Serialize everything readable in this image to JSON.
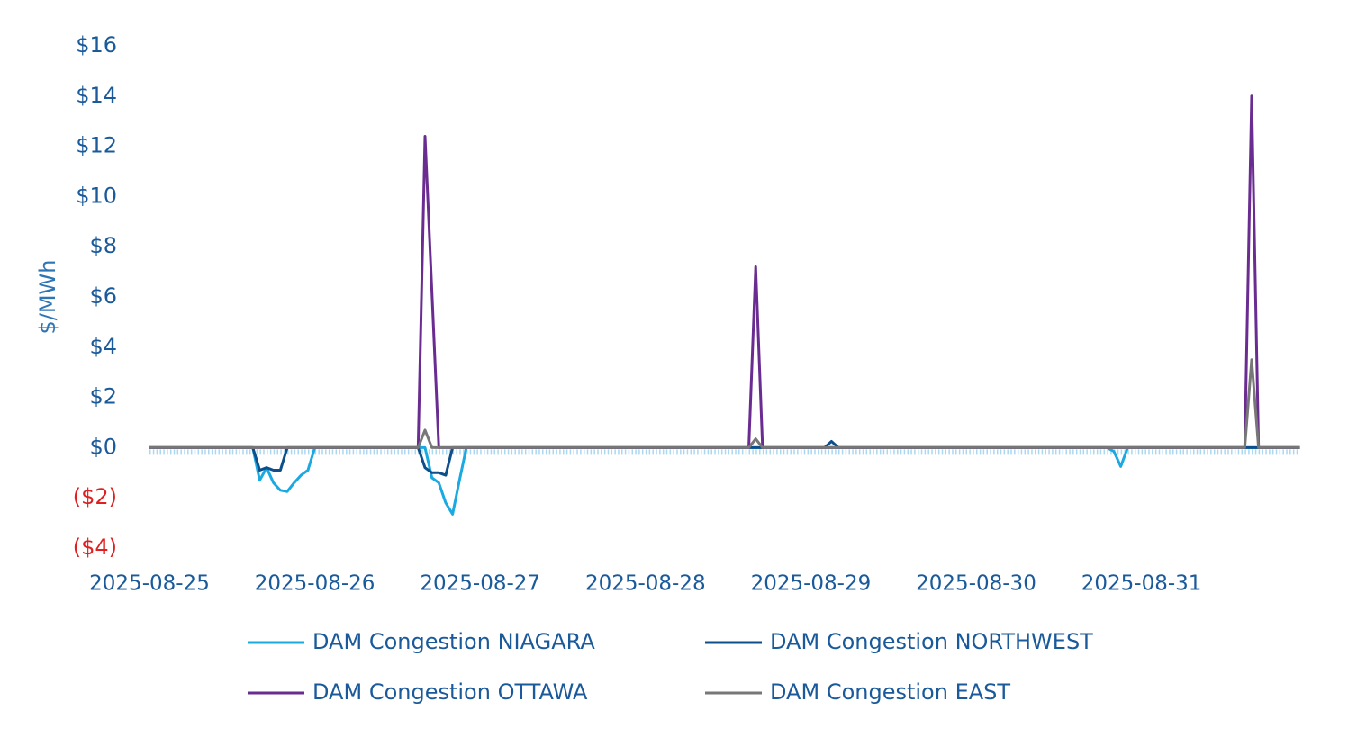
{
  "chart_data": {
    "type": "line",
    "y_label": "$/MWh",
    "categories": [
      "2025-08-25",
      null,
      null,
      null,
      null,
      null,
      null,
      null,
      null,
      null,
      null,
      null,
      null,
      null,
      null,
      null,
      null,
      null,
      null,
      null,
      null,
      null,
      null,
      null,
      "2025-08-26",
      null,
      null,
      null,
      null,
      null,
      null,
      null,
      null,
      null,
      null,
      null,
      null,
      null,
      null,
      null,
      null,
      null,
      null,
      null,
      null,
      null,
      null,
      null,
      "2025-08-27",
      null,
      null,
      null,
      null,
      null,
      null,
      null,
      null,
      null,
      null,
      null,
      null,
      null,
      null,
      null,
      null,
      null,
      null,
      null,
      null,
      null,
      null,
      null,
      "2025-08-28",
      null,
      null,
      null,
      null,
      null,
      null,
      null,
      null,
      null,
      null,
      null,
      null,
      null,
      null,
      null,
      null,
      null,
      null,
      null,
      null,
      null,
      null,
      null,
      "2025-08-29",
      null,
      null,
      null,
      null,
      null,
      null,
      null,
      null,
      null,
      null,
      null,
      null,
      null,
      null,
      null,
      null,
      null,
      null,
      null,
      null,
      null,
      null,
      null,
      "2025-08-30",
      null,
      null,
      null,
      null,
      null,
      null,
      null,
      null,
      null,
      null,
      null,
      null,
      null,
      null,
      null,
      null,
      null,
      null,
      null,
      null,
      null,
      null,
      null,
      "2025-08-31",
      null,
      null,
      null,
      null,
      null,
      null,
      null,
      null,
      null,
      null,
      null,
      null,
      null,
      null,
      null,
      null,
      null,
      null,
      null,
      null,
      null,
      null,
      null
    ],
    "series": [
      {
        "name": "DAM Congestion NIAGARA",
        "color": "#1ba9e1",
        "values": [
          0,
          0,
          0,
          0,
          0,
          0,
          0,
          0,
          0,
          0,
          0,
          0,
          0,
          0,
          0,
          0,
          -1.3,
          -0.8,
          -1.4,
          -1.7,
          -1.75,
          -1.4,
          -1.1,
          -0.9,
          0,
          0,
          0,
          0,
          0,
          0,
          0,
          0,
          0,
          0,
          0,
          0,
          0,
          0,
          0,
          0,
          0,
          -1.2,
          -1.4,
          -2.2,
          -2.65,
          -1.3,
          0,
          0,
          0,
          0,
          0,
          0,
          0,
          0,
          0,
          0,
          0,
          0,
          0,
          0,
          0,
          0,
          0,
          0,
          0,
          0,
          0,
          0,
          0,
          0,
          0,
          0,
          0,
          0,
          0,
          0,
          0,
          0,
          0,
          0,
          0,
          0,
          0,
          0,
          0,
          0,
          0,
          0,
          0,
          0,
          0,
          0,
          0,
          0,
          0,
          0,
          0,
          0,
          0,
          0,
          0,
          0,
          0,
          0,
          0,
          0,
          0,
          0,
          0,
          0,
          0,
          0,
          0,
          0,
          0,
          0,
          0,
          0,
          0,
          0,
          0,
          0,
          0,
          0,
          0,
          0,
          0,
          0,
          0,
          0,
          0,
          0,
          0,
          0,
          0,
          0,
          0,
          0,
          0,
          0,
          -0.15,
          -0.75,
          0,
          0,
          0,
          0,
          0,
          0,
          0,
          0,
          0,
          0,
          0,
          0,
          0,
          0,
          0,
          0,
          0,
          0,
          0,
          0,
          0,
          0,
          0,
          0,
          0,
          0
        ]
      },
      {
        "name": "DAM Congestion NORTHWEST",
        "color": "#0d4f8b",
        "values": [
          0,
          0,
          0,
          0,
          0,
          0,
          0,
          0,
          0,
          0,
          0,
          0,
          0,
          0,
          0,
          0,
          -0.9,
          -0.8,
          -0.9,
          -0.9,
          0,
          0,
          0,
          0,
          0,
          0,
          0,
          0,
          0,
          0,
          0,
          0,
          0,
          0,
          0,
          0,
          0,
          0,
          0,
          0,
          -0.8,
          -1.0,
          -1.0,
          -1.1,
          0,
          0,
          0,
          0,
          0,
          0,
          0,
          0,
          0,
          0,
          0,
          0,
          0,
          0,
          0,
          0,
          0,
          0,
          0,
          0,
          0,
          0,
          0,
          0,
          0,
          0,
          0,
          0,
          0,
          0,
          0,
          0,
          0,
          0,
          0,
          0,
          0,
          0,
          0,
          0,
          0,
          0,
          0,
          0,
          0,
          0,
          0,
          0,
          0,
          0,
          0,
          0,
          0,
          0,
          0,
          0.25,
          0,
          0,
          0,
          0,
          0,
          0,
          0,
          0,
          0,
          0,
          0,
          0,
          0,
          0,
          0,
          0,
          0,
          0,
          0,
          0,
          0,
          0,
          0,
          0,
          0,
          0,
          0,
          0,
          0,
          0,
          0,
          0,
          0,
          0,
          0,
          0,
          0,
          0,
          0,
          0,
          0,
          0,
          0,
          0,
          0,
          0,
          0,
          0,
          0,
          0,
          0,
          0,
          0,
          0,
          0,
          0,
          0,
          0,
          0,
          0,
          0,
          0,
          0,
          0,
          0,
          0,
          0,
          0
        ]
      },
      {
        "name": "DAM Congestion OTTAWA",
        "color": "#6a2c91",
        "values": [
          0,
          0,
          0,
          0,
          0,
          0,
          0,
          0,
          0,
          0,
          0,
          0,
          0,
          0,
          0,
          0,
          0,
          0,
          0,
          0,
          0,
          0,
          0,
          0,
          0,
          0,
          0,
          0,
          0,
          0,
          0,
          0,
          0,
          0,
          0,
          0,
          0,
          0,
          0,
          0,
          12.4,
          6.2,
          0,
          0,
          0,
          0,
          0,
          0,
          0,
          0,
          0,
          0,
          0,
          0,
          0,
          0,
          0,
          0,
          0,
          0,
          0,
          0,
          0,
          0,
          0,
          0,
          0,
          0,
          0,
          0,
          0,
          0,
          0,
          0,
          0,
          0,
          0,
          0,
          0,
          0,
          0,
          0,
          0,
          0,
          0,
          0,
          0,
          0,
          7.2,
          0,
          0,
          0,
          0,
          0,
          0,
          0,
          0,
          0,
          0,
          0,
          0,
          0,
          0,
          0,
          0,
          0,
          0,
          0,
          0,
          0,
          0,
          0,
          0,
          0,
          0,
          0,
          0,
          0,
          0,
          0,
          0,
          0,
          0,
          0,
          0,
          0,
          0,
          0,
          0,
          0,
          0,
          0,
          0,
          0,
          0,
          0,
          0,
          0,
          0,
          0,
          0,
          0,
          0,
          0,
          0,
          0,
          0,
          0,
          0,
          0,
          0,
          0,
          0,
          0,
          0,
          0,
          0,
          0,
          0,
          0,
          14,
          0,
          0,
          0,
          0,
          0,
          0,
          0
        ]
      },
      {
        "name": "DAM Congestion EAST",
        "color": "#777777",
        "values": [
          0,
          0,
          0,
          0,
          0,
          0,
          0,
          0,
          0,
          0,
          0,
          0,
          0,
          0,
          0,
          0,
          0,
          0,
          0,
          0,
          0,
          0,
          0,
          0,
          0,
          0,
          0,
          0,
          0,
          0,
          0,
          0,
          0,
          0,
          0,
          0,
          0,
          0,
          0,
          0,
          0.7,
          0,
          0,
          0,
          0,
          0,
          0,
          0,
          0,
          0,
          0,
          0,
          0,
          0,
          0,
          0,
          0,
          0,
          0,
          0,
          0,
          0,
          0,
          0,
          0,
          0,
          0,
          0,
          0,
          0,
          0,
          0,
          0,
          0,
          0,
          0,
          0,
          0,
          0,
          0,
          0,
          0,
          0,
          0,
          0,
          0,
          0,
          0,
          0.35,
          0,
          0,
          0,
          0,
          0,
          0,
          0,
          0,
          0,
          0,
          0,
          0,
          0,
          0,
          0,
          0,
          0,
          0,
          0,
          0,
          0,
          0,
          0,
          0,
          0,
          0,
          0,
          0,
          0,
          0,
          0,
          0,
          0,
          0,
          0,
          0,
          0,
          0,
          0,
          0,
          0,
          0,
          0,
          0,
          0,
          0,
          0,
          0,
          0,
          0,
          0,
          0,
          0,
          0,
          0,
          0,
          0,
          0,
          0,
          0,
          0,
          0,
          0,
          0,
          0,
          0,
          0,
          0,
          0,
          0,
          0,
          3.5,
          0,
          0,
          0,
          0,
          0,
          0,
          0
        ]
      }
    ],
    "ylim": [
      -4,
      16
    ],
    "yticks": [
      {
        "value": -4,
        "label": "($4)"
      },
      {
        "value": -2,
        "label": "($2)"
      },
      {
        "value": 0,
        "label": "$0"
      },
      {
        "value": 2,
        "label": "$2"
      },
      {
        "value": 4,
        "label": "$4"
      },
      {
        "value": 6,
        "label": "$6"
      },
      {
        "value": 8,
        "label": "$8"
      },
      {
        "value": 10,
        "label": "$10"
      },
      {
        "value": 12,
        "label": "$12"
      },
      {
        "value": 14,
        "label": "$14"
      },
      {
        "value": 16,
        "label": "$16"
      }
    ],
    "grid": false
  }
}
